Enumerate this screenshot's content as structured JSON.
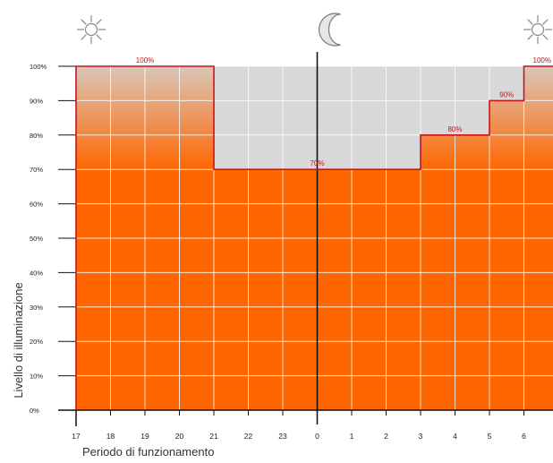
{
  "chart_data": {
    "type": "area",
    "title": "",
    "xlabel": "Periodo di funzionamento",
    "ylabel": "Livello di illuminazione",
    "ylim": [
      0,
      100
    ],
    "x_ticks": [
      "17",
      "18",
      "19",
      "20",
      "21",
      "22",
      "23",
      "0",
      "1",
      "2",
      "3",
      "4",
      "5",
      "6"
    ],
    "y_ticks": [
      "0%",
      "10%",
      "20%",
      "30%",
      "40%",
      "50%",
      "60%",
      "70%",
      "80%",
      "90%",
      "100%"
    ],
    "grid": true,
    "steps": [
      {
        "from": "17",
        "to": "21",
        "value": 100,
        "label": "100%"
      },
      {
        "from": "21",
        "to": "3",
        "value": 70,
        "label": "70%"
      },
      {
        "from": "3",
        "to": "5",
        "value": 80,
        "label": "80%"
      },
      {
        "from": "5",
        "to": "6",
        "value": 90,
        "label": "90%"
      },
      {
        "from": "6",
        "to": "end",
        "value": 100,
        "label": "100%"
      }
    ],
    "icons": [
      {
        "name": "sun-icon",
        "position": "start"
      },
      {
        "name": "moon-icon",
        "position": "midnight"
      },
      {
        "name": "sun-icon",
        "position": "end"
      }
    ],
    "colors": {
      "fill": "#ff6600",
      "fill_gradient_top": "#d9c6b8",
      "background": "#d8d8d8",
      "step_line": "#c8141e",
      "grid": "#ffffff",
      "midnight_line": "#111111"
    }
  }
}
